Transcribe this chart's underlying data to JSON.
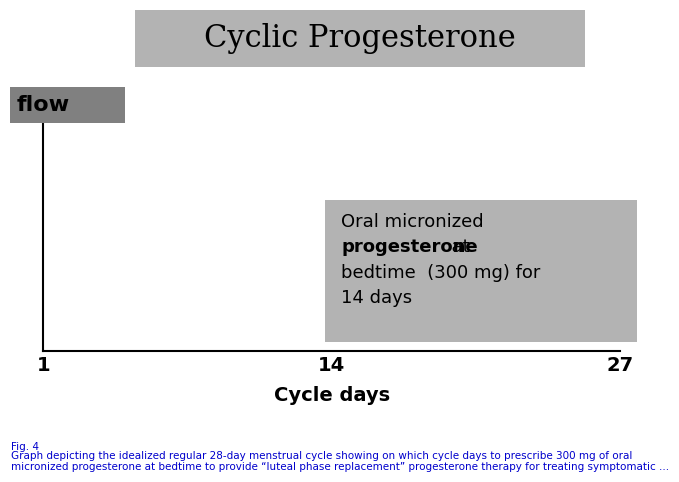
{
  "title": "Cyclic Progesterone",
  "title_bg_color": "#b3b3b3",
  "title_fontsize": 22,
  "title_font": "serif",
  "flow_label": "flow",
  "flow_bg_color": "#808080",
  "flow_text_color": "#000000",
  "flow_fontsize": 16,
  "xlabel": "Cycle days",
  "xlabel_fontsize": 14,
  "xticks": [
    1,
    14,
    27
  ],
  "xtick_fontsize": 14,
  "xlim": [
    1,
    27
  ],
  "ylim": [
    0,
    1
  ],
  "annotation_text_line1": "Oral micronized",
  "annotation_text_line2_normal": "  at",
  "annotation_text_line2_bold": "progesterone",
  "annotation_text_line3": "bedtime  (300 mg) for",
  "annotation_text_line4": "14 days",
  "annotation_bg_color": "#b3b3b3",
  "annotation_fontsize": 13,
  "fig_bg_color": "#ffffff",
  "caption_text": "Fig. 4",
  "caption_body": "Graph depicting the idealized regular 28-day menstrual cycle showing on which cycle days to prescribe 300 mg of oral\nmicronized progesterone at bedtime to provide “luteal phase replacement” progesterone therapy for treating symptomatic ...",
  "caption_color": "#0000cc",
  "caption_fontsize": 7.5
}
